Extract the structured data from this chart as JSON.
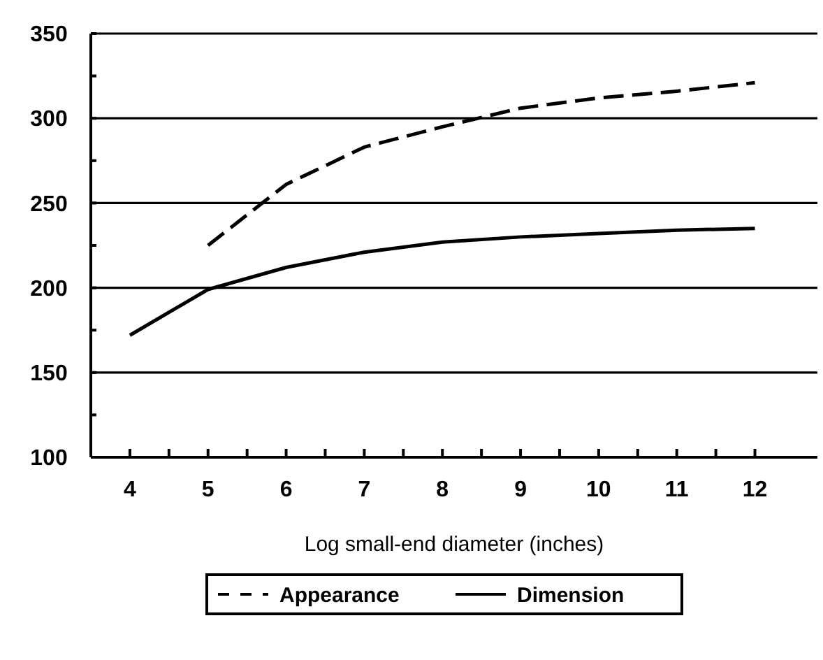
{
  "chart_data": {
    "type": "line",
    "xlabel": "Log small-end diameter (inches)",
    "x": [
      4,
      5,
      6,
      7,
      8,
      9,
      10,
      11,
      12
    ],
    "xlim": [
      3.5,
      12.8
    ],
    "xticks": [
      {
        "value": 3.5,
        "label": null
      },
      4,
      {
        "value": 4.5,
        "label": null
      },
      5,
      {
        "value": 5.5,
        "label": null
      },
      6,
      {
        "value": 6.5,
        "label": null
      },
      7,
      {
        "value": 7.5,
        "label": null
      },
      8,
      {
        "value": 8.5,
        "label": null
      },
      9,
      {
        "value": 9.5,
        "label": null
      },
      10,
      {
        "value": 10.5,
        "label": null
      },
      11,
      {
        "value": 11.5,
        "label": null
      },
      12
    ],
    "ylim": [
      100,
      350
    ],
    "yticks": [
      100,
      {
        "value": 125,
        "label": null
      },
      150,
      {
        "value": 175,
        "label": null
      },
      200,
      {
        "value": 225,
        "label": null
      },
      250,
      {
        "value": 275,
        "label": null
      },
      300,
      {
        "value": 325,
        "label": null
      },
      350
    ],
    "grid": "y",
    "legend": "bottom",
    "series": [
      {
        "name": "Appearance",
        "color": "#000000",
        "line_style": "dashed",
        "values": [
          null,
          225,
          261,
          283,
          295,
          306,
          312,
          316,
          321
        ]
      },
      {
        "name": "Dimension",
        "color": "#000000",
        "line_style": "solid",
        "values": [
          172,
          199,
          212,
          221,
          227,
          230,
          232,
          234,
          235
        ]
      }
    ]
  }
}
